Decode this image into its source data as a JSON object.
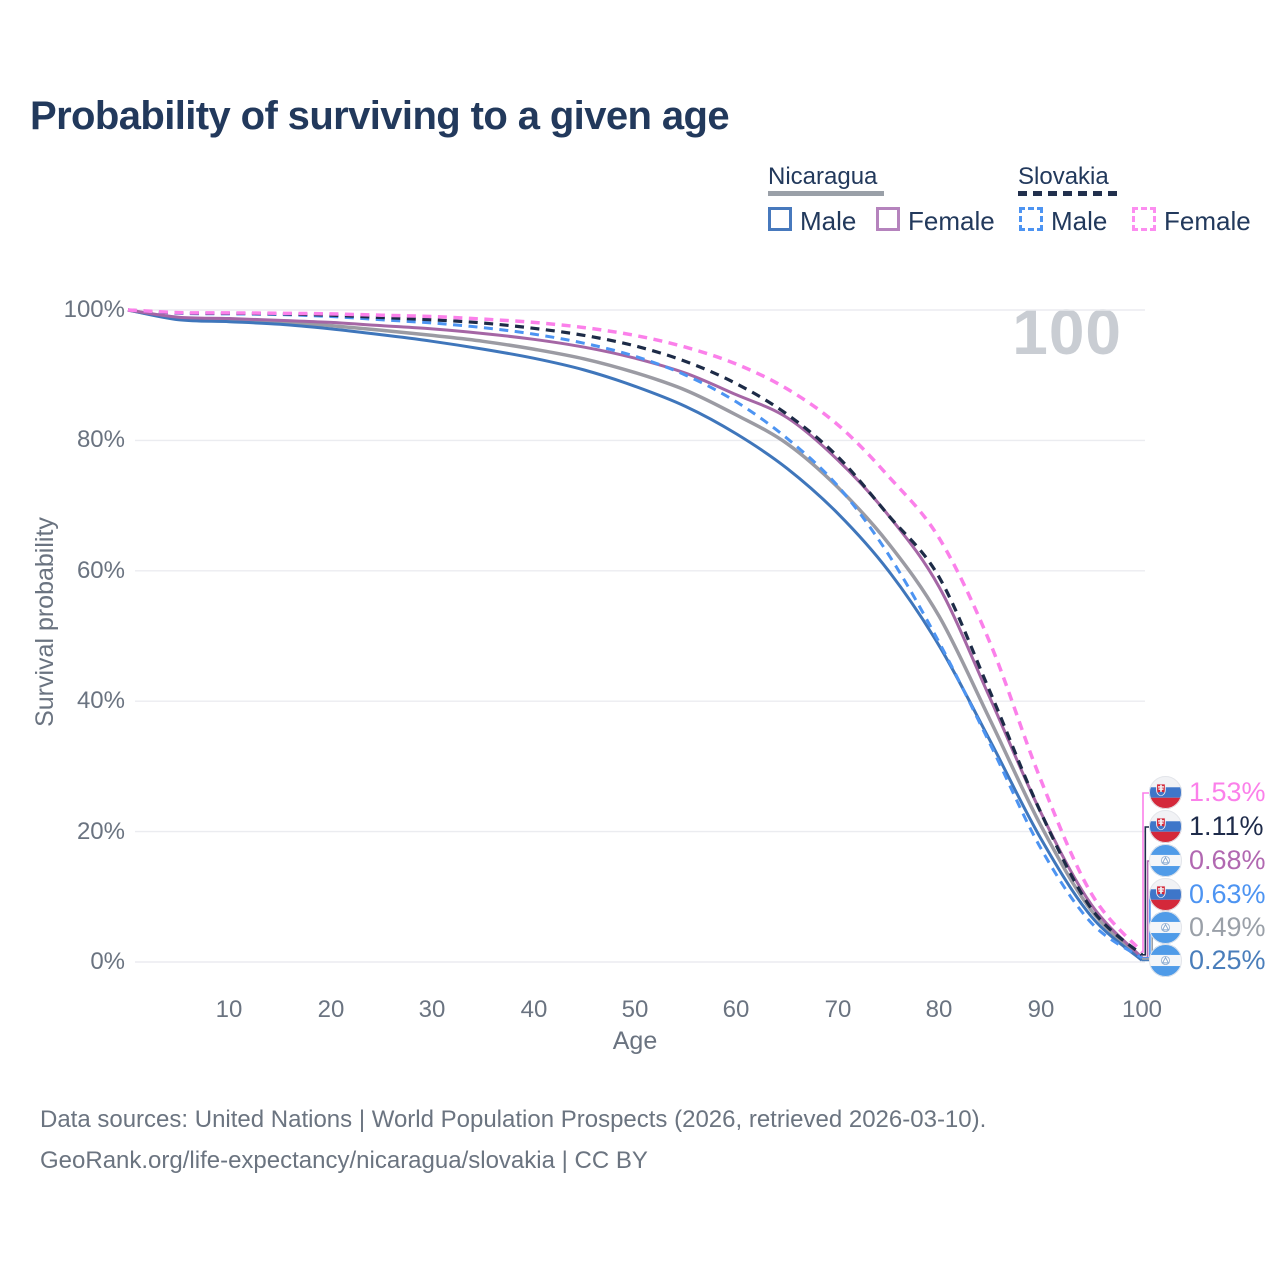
{
  "title": "Probability of surviving to a given age",
  "watermark": "100",
  "legend": {
    "groups": [
      {
        "name": "Nicaragua",
        "line_style": "solid",
        "underline_color": "#9aa0a8",
        "items": [
          {
            "label": "Male",
            "swatch_color": "#4779bd",
            "dashed": false
          },
          {
            "label": "Female",
            "swatch_color": "#b583bd",
            "dashed": false
          }
        ]
      },
      {
        "name": "Slovakia",
        "line_style": "dashed",
        "underline_color": "#22304d",
        "items": [
          {
            "label": "Male",
            "swatch_color": "#4d94f2",
            "dashed": true
          },
          {
            "label": "Female",
            "swatch_color": "#fc8df0",
            "dashed": true
          }
        ]
      }
    ]
  },
  "footer": {
    "line1": "Data sources: United Nations | World Population Prospects (2026, retrieved 2026-03-10).",
    "line2": "GeoRank.org/life-expectancy/nicaragua/slovakia | CC BY"
  },
  "colors": {
    "grid": "#ebecf0",
    "axis_text": "#6a7380",
    "title_text": "#22395c",
    "watermark": "#c9cdd3"
  },
  "chart_data": {
    "type": "line",
    "title": "Probability of surviving to a given age",
    "xlabel": "Age",
    "ylabel": "Survival probability",
    "xlim": [
      0,
      100
    ],
    "ylim": [
      0,
      100
    ],
    "x_ticks": [
      10,
      20,
      30,
      40,
      50,
      60,
      70,
      80,
      90,
      100
    ],
    "y_ticks": [
      0,
      20,
      40,
      60,
      80,
      100
    ],
    "y_tick_suffix": "%",
    "grid": "horizontal",
    "x": [
      0,
      5,
      10,
      15,
      20,
      25,
      30,
      35,
      40,
      45,
      50,
      55,
      60,
      65,
      70,
      75,
      80,
      85,
      90,
      95,
      100
    ],
    "series": [
      {
        "id": "nic_both",
        "name": "Nicaragua Both sexes",
        "country": "Nicaragua",
        "sex": "Both",
        "color": "#9b9ba3",
        "dashed": false,
        "width": 3.5,
        "values": [
          100,
          98.7,
          98.4,
          98.1,
          97.6,
          96.9,
          96.1,
          95.2,
          94.0,
          92.5,
          90.4,
          87.7,
          83.9,
          79.5,
          72.8,
          64.2,
          53.0,
          37.2,
          21.0,
          7.9,
          0.49
        ]
      },
      {
        "id": "nic_male",
        "name": "Nicaragua Male",
        "country": "Nicaragua",
        "sex": "Male",
        "color": "#3f76bb",
        "dashed": false,
        "width": 3,
        "values": [
          100,
          98.5,
          98.2,
          97.8,
          97.1,
          96.2,
          95.2,
          94.0,
          92.6,
          90.8,
          88.3,
          85.2,
          81.0,
          75.7,
          68.8,
          60.0,
          48.5,
          34.0,
          19.0,
          7.0,
          0.25
        ]
      },
      {
        "id": "nic_female",
        "name": "Nicaragua Female",
        "country": "Nicaragua",
        "sex": "Female",
        "color": "#a566a5",
        "dashed": false,
        "width": 3,
        "values": [
          100,
          98.9,
          98.7,
          98.4,
          98.1,
          97.6,
          97.1,
          96.4,
          95.5,
          94.3,
          92.6,
          90.3,
          87.0,
          83.5,
          77.0,
          68.5,
          57.5,
          40.5,
          23.0,
          8.8,
          0.68
        ]
      },
      {
        "id": "svk_male",
        "name": "Slovakia Male",
        "country": "Slovakia",
        "sex": "Male",
        "color": "#4d94f2",
        "dashed": true,
        "width": 3,
        "values": [
          100,
          99.5,
          99.4,
          99.3,
          99.0,
          98.5,
          98.0,
          97.3,
          96.3,
          94.9,
          92.9,
          90.0,
          85.9,
          80.3,
          73.0,
          62.5,
          49.0,
          33.5,
          17.5,
          6.0,
          0.63
        ]
      },
      {
        "id": "svk_both",
        "name": "Slovakia Both sexes",
        "country": "Slovakia",
        "sex": "Both",
        "color": "#1d2b47",
        "dashed": true,
        "width": 3.2,
        "values": [
          100,
          99.55,
          99.5,
          99.4,
          99.2,
          98.85,
          98.5,
          98.0,
          97.2,
          96.1,
          94.5,
          92.1,
          88.7,
          84.0,
          77.5,
          68.5,
          59.0,
          41.5,
          23.0,
          8.2,
          1.11
        ]
      },
      {
        "id": "svk_female",
        "name": "Slovakia Female",
        "country": "Slovakia",
        "sex": "Female",
        "color": "#fb80ea",
        "dashed": true,
        "width": 3.5,
        "values": [
          100,
          99.6,
          99.55,
          99.5,
          99.4,
          99.2,
          99.0,
          98.6,
          98.1,
          97.3,
          96.1,
          94.3,
          91.7,
          87.9,
          82.4,
          74.5,
          65.0,
          49.0,
          28.0,
          10.5,
          1.53
        ]
      }
    ],
    "end_labels": [
      {
        "text": "1.53%",
        "series": "svk_female",
        "flag": "slovakia",
        "color": "#fb80ea"
      },
      {
        "text": "1.11%",
        "series": "svk_both",
        "flag": "slovakia",
        "color": "#1e2b4a"
      },
      {
        "text": "0.68%",
        "series": "nic_female",
        "flag": "nicaragua",
        "color": "#b168b1"
      },
      {
        "text": "0.63%",
        "series": "svk_male",
        "flag": "slovakia",
        "color": "#4d94f2"
      },
      {
        "text": "0.49%",
        "series": "nic_both",
        "flag": "nicaragua",
        "color": "#9aa0a8"
      },
      {
        "text": "0.25%",
        "series": "nic_male",
        "flag": "nicaragua",
        "color": "#4a7ebb"
      }
    ]
  }
}
